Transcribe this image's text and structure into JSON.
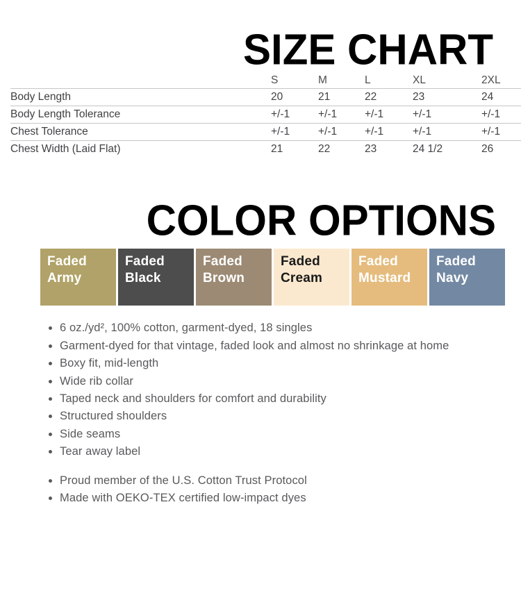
{
  "size_chart": {
    "title": "SIZE CHART",
    "columns": [
      "S",
      "M",
      "L",
      "XL",
      "2XL"
    ],
    "rows": [
      {
        "label": "Body Length",
        "values": [
          "20",
          "21",
          "22",
          "23",
          "24"
        ]
      },
      {
        "label": "Body Length Tolerance",
        "values": [
          "+/-1",
          "+/-1",
          "+/-1",
          "+/-1",
          "+/-1"
        ]
      },
      {
        "label": "Chest Tolerance",
        "values": [
          "+/-1",
          "+/-1",
          "+/-1",
          "+/-1",
          "+/-1"
        ]
      },
      {
        "label": "Chest Width (Laid Flat)",
        "values": [
          "21",
          "22",
          "23",
          "24 1/2",
          "26"
        ]
      }
    ]
  },
  "color_options": {
    "title": "COLOR OPTIONS",
    "swatches": [
      {
        "name": "Faded Army",
        "line1": "Faded",
        "line2": "Army",
        "bg": "#b0a268",
        "fg": "#ffffff"
      },
      {
        "name": "Faded Black",
        "line1": "Faded",
        "line2": "Black",
        "bg": "#4d4d4d",
        "fg": "#ffffff"
      },
      {
        "name": "Faded Brown",
        "line1": "Faded",
        "line2": "Brown",
        "bg": "#9c8a74",
        "fg": "#ffffff"
      },
      {
        "name": "Faded Cream",
        "line1": "Faded",
        "line2": "Cream",
        "bg": "#fbe9cf",
        "fg": "#1a1a1a"
      },
      {
        "name": "Faded Mustard",
        "line1": "Faded",
        "line2": "Mustard",
        "bg": "#e5bc7e",
        "fg": "#ffffff"
      },
      {
        "name": "Faded Navy",
        "line1": "Faded",
        "line2": "Navy",
        "bg": "#7389a3",
        "fg": "#ffffff"
      }
    ]
  },
  "features": {
    "primary": [
      "6 oz./yd², 100% cotton, garment-dyed, 18 singles",
      "Garment-dyed for that vintage, faded look and almost no shrinkage at home",
      "Boxy fit, mid-length",
      "Wide rib collar",
      "Taped neck and shoulders for comfort and durability",
      "Structured shoulders",
      "Side seams",
      "Tear away label"
    ],
    "secondary": [
      "Proud member of the U.S. Cotton Trust Protocol",
      "Made with OEKO-TEX certified low-impact dyes"
    ]
  }
}
